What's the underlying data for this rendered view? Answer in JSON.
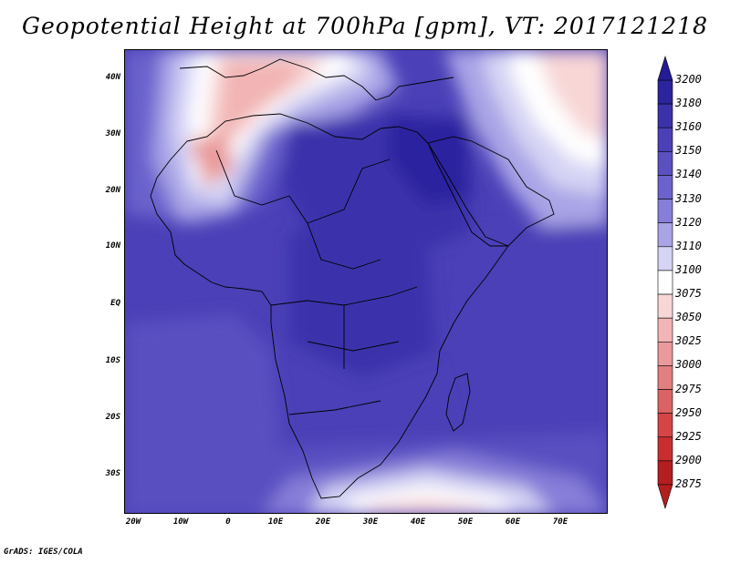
{
  "title": "Geopotential Height at 700hPa [gpm], VT: 2017121218",
  "lat_labels": [
    "40N",
    "30N",
    "20N",
    "10N",
    "EQ",
    "10S",
    "20S",
    "30S"
  ],
  "lon_labels": [
    "20W",
    "10W",
    "0",
    "10E",
    "20E",
    "30E",
    "40E",
    "50E",
    "60E",
    "70E"
  ],
  "colorbar": {
    "levels": [
      "3200",
      "3180",
      "3160",
      "3150",
      "3140",
      "3130",
      "3120",
      "3110",
      "3100",
      "3075",
      "3050",
      "3025",
      "3000",
      "2975",
      "2950",
      "2925",
      "2900",
      "2875"
    ],
    "colors": [
      "#241c96",
      "#2c249e",
      "#3b32ab",
      "#4b40b7",
      "#5a50c1",
      "#6b62cc",
      "#867ed8",
      "#a9a4e6",
      "#d6d4f4",
      "#ffffff",
      "#f8d6d6",
      "#f2b4b4",
      "#ea9a9a",
      "#e27f7f",
      "#dc6363",
      "#d54545",
      "#c82e2e",
      "#b41e1e"
    ]
  },
  "credit": "GrADS: IGES/COLA"
}
